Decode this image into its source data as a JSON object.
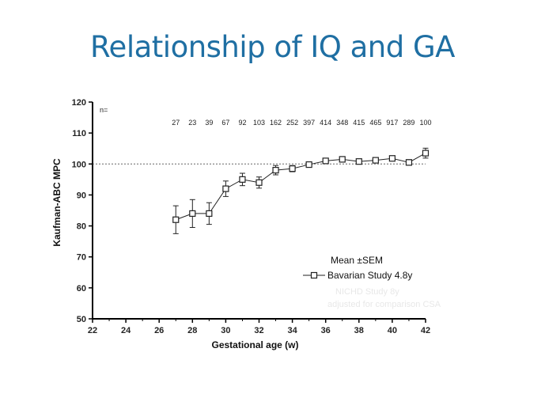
{
  "slide": {
    "title": "Relationship of IQ and GA"
  },
  "chart_data": {
    "type": "line",
    "xlabel": "Gestational age (w)",
    "ylabel": "Kaufman-ABC MPC",
    "xlim": [
      22,
      42
    ],
    "ylim": [
      50,
      120
    ],
    "xticks": [
      22,
      24,
      26,
      28,
      30,
      32,
      34,
      36,
      38,
      40,
      42
    ],
    "yticks": [
      50,
      60,
      70,
      80,
      90,
      100,
      110,
      120
    ],
    "reference_line": 100,
    "n_label": "n=",
    "legend_title": "Mean ±SEM",
    "series": [
      {
        "name": "Bavarian Study 4.8y",
        "x": [
          27,
          28,
          29,
          30,
          31,
          32,
          33,
          34,
          35,
          36,
          37,
          38,
          39,
          40,
          41,
          42
        ],
        "y": [
          82,
          84,
          84,
          92,
          95,
          94,
          98,
          98.5,
          99.8,
          101,
          101.5,
          100.8,
          101.2,
          101.8,
          100.5,
          103.5
        ],
        "sem": [
          4.5,
          4.5,
          3.5,
          2.5,
          2.0,
          1.8,
          1.5,
          1.0,
          0.8,
          0.7,
          0.8,
          0.7,
          0.7,
          0.6,
          0.9,
          1.6
        ],
        "n": [
          "27",
          "23",
          "39",
          "67",
          "92",
          "103",
          "162",
          "252",
          "397",
          "414",
          "348",
          "415",
          "465",
          "917",
          "289",
          "100"
        ]
      }
    ],
    "faint_notes": [
      "NICHD Study 8y",
      "adjusted for comparison CSA"
    ]
  }
}
